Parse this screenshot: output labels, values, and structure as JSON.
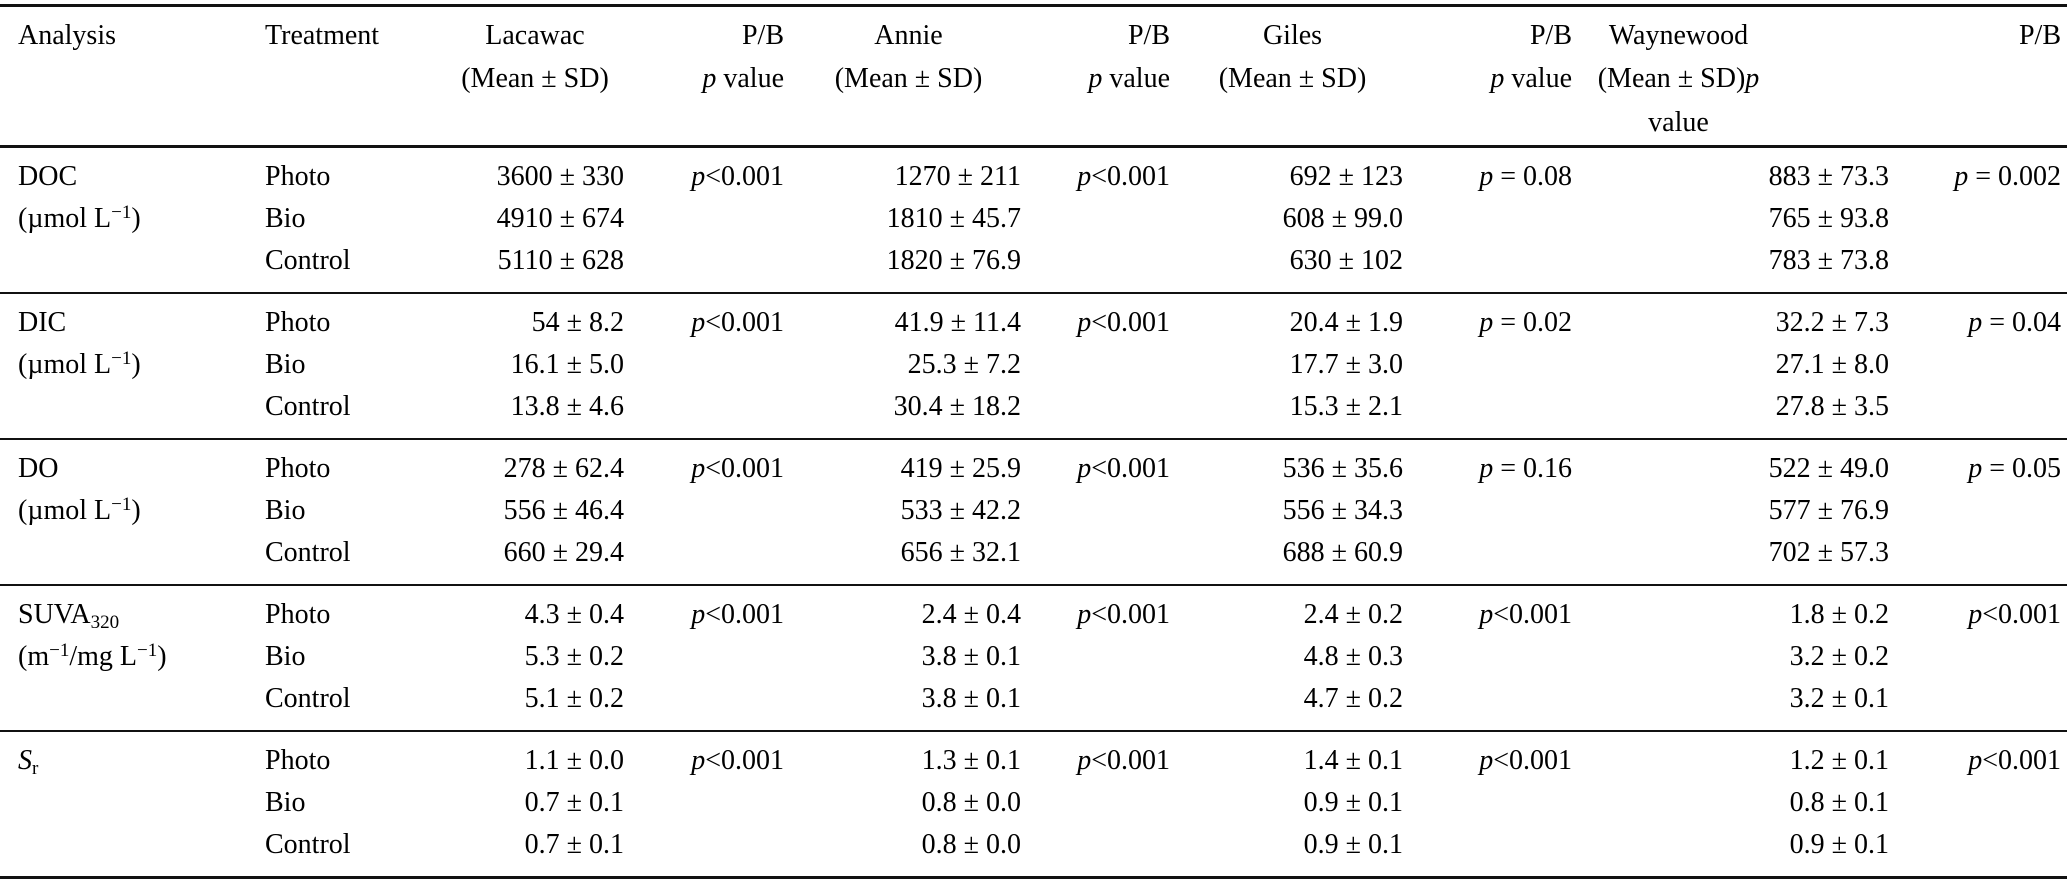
{
  "table": {
    "header": {
      "analysis": "Analysis",
      "treatment": "Treatment",
      "pb_label": "P/B",
      "p_value_label": "p value",
      "lakes": [
        {
          "name": "Lacawac",
          "mean_sd": "(Mean ± SD)",
          "mean_sd_extra": "",
          "pb": "P/B",
          "pb_sub": "p value"
        },
        {
          "name": "Annie",
          "mean_sd": "(Mean ± SD)",
          "mean_sd_extra": "",
          "pb": "P/B",
          "pb_sub": "p value"
        },
        {
          "name": "Giles",
          "mean_sd": "(Mean ± SD)",
          "mean_sd_extra": "",
          "pb": "P/B",
          "pb_sub": "p value"
        },
        {
          "name": "Waynewood",
          "mean_sd": "(Mean ± SD)",
          "mean_sd_extra": "p value",
          "pb": "P/B",
          "pb_sub": ""
        }
      ]
    },
    "sections": [
      {
        "id": "doc",
        "label": [
          {
            "t": "DOC"
          }
        ],
        "unit": [
          {
            "t": "(µmol L"
          },
          {
            "t": "−1",
            "s": "sup"
          },
          {
            "t": ")"
          }
        ],
        "rows": [
          {
            "treatment": "Photo",
            "values": [
              "3600 ± 330",
              "1270 ± 211",
              "692 ± 123",
              "883 ± 73.3"
            ],
            "p": [
              "p<0.001",
              "p<0.001",
              "p = 0.08",
              "p = 0.002"
            ]
          },
          {
            "treatment": "Bio",
            "values": [
              "4910 ± 674",
              "1810 ± 45.7",
              "608 ± 99.0",
              "765 ± 93.8"
            ],
            "p": [
              "",
              "",
              "",
              ""
            ]
          },
          {
            "treatment": "Control",
            "values": [
              "5110 ± 628",
              "1820 ± 76.9",
              "630 ± 102",
              "783 ± 73.8"
            ],
            "p": [
              "",
              "",
              "",
              ""
            ]
          }
        ]
      },
      {
        "id": "dic",
        "label": [
          {
            "t": "DIC"
          }
        ],
        "unit": [
          {
            "t": "(µmol L"
          },
          {
            "t": "−1",
            "s": "sup"
          },
          {
            "t": ")"
          }
        ],
        "rows": [
          {
            "treatment": "Photo",
            "values": [
              "54 ± 8.2",
              "41.9 ± 11.4",
              "20.4 ± 1.9",
              "32.2 ± 7.3"
            ],
            "p": [
              "p<0.001",
              "p<0.001",
              "p = 0.02",
              "p = 0.04"
            ]
          },
          {
            "treatment": "Bio",
            "values": [
              "16.1 ± 5.0",
              "25.3 ± 7.2",
              "17.7 ± 3.0",
              "27.1 ± 8.0"
            ],
            "p": [
              "",
              "",
              "",
              ""
            ]
          },
          {
            "treatment": "Control",
            "values": [
              "13.8 ± 4.6",
              "30.4 ± 18.2",
              "15.3 ± 2.1",
              "27.8 ± 3.5"
            ],
            "p": [
              "",
              "",
              "",
              ""
            ]
          }
        ]
      },
      {
        "id": "do",
        "label": [
          {
            "t": "DO"
          }
        ],
        "unit": [
          {
            "t": "(µmol L"
          },
          {
            "t": "−1",
            "s": "sup"
          },
          {
            "t": ")"
          }
        ],
        "rows": [
          {
            "treatment": "Photo",
            "values": [
              "278 ± 62.4",
              "419 ± 25.9",
              "536 ± 35.6",
              "522 ± 49.0"
            ],
            "p": [
              "p<0.001",
              "p<0.001",
              "p = 0.16",
              "p = 0.05"
            ]
          },
          {
            "treatment": "Bio",
            "values": [
              "556 ± 46.4",
              "533 ± 42.2",
              "556 ± 34.3",
              "577 ± 76.9"
            ],
            "p": [
              "",
              "",
              "",
              ""
            ]
          },
          {
            "treatment": "Control",
            "values": [
              "660 ± 29.4",
              "656 ± 32.1",
              "688 ± 60.9",
              "702 ± 57.3"
            ],
            "p": [
              "",
              "",
              "",
              ""
            ]
          }
        ]
      },
      {
        "id": "suva320",
        "label": [
          {
            "t": "SUVA"
          },
          {
            "t": "320",
            "s": "sub"
          }
        ],
        "unit": [
          {
            "t": "(m"
          },
          {
            "t": "−1",
            "s": "sup"
          },
          {
            "t": "/mg L"
          },
          {
            "t": "−1",
            "s": "sup"
          },
          {
            "t": ")"
          }
        ],
        "rows": [
          {
            "treatment": "Photo",
            "values": [
              "4.3 ± 0.4",
              "2.4 ± 0.4",
              "2.4 ± 0.2",
              "1.8 ± 0.2"
            ],
            "p": [
              "p<0.001",
              "p<0.001",
              "p<0.001",
              "p<0.001"
            ]
          },
          {
            "treatment": "Bio",
            "values": [
              "5.3 ± 0.2",
              "3.8 ± 0.1",
              "4.8 ± 0.3",
              "3.2 ± 0.2"
            ],
            "p": [
              "",
              "",
              "",
              ""
            ]
          },
          {
            "treatment": "Control",
            "values": [
              "5.1 ± 0.2",
              "3.8 ± 0.1",
              "4.7 ± 0.2",
              "3.2 ± 0.1"
            ],
            "p": [
              "",
              "",
              "",
              ""
            ]
          }
        ]
      },
      {
        "id": "sr",
        "label": [
          {
            "t": "S",
            "s": "i"
          },
          {
            "t": "r",
            "s": "sub"
          }
        ],
        "unit": [],
        "rows": [
          {
            "treatment": "Photo",
            "values": [
              "1.1 ± 0.0",
              "1.3 ± 0.1",
              "1.4 ± 0.1",
              "1.2 ± 0.1"
            ],
            "p": [
              "p<0.001",
              "p<0.001",
              "p<0.001",
              "p<0.001"
            ]
          },
          {
            "treatment": "Bio",
            "values": [
              "0.7 ± 0.1",
              "0.8 ± 0.0",
              "0.9 ± 0.1",
              "0.8 ± 0.1"
            ],
            "p": [
              "",
              "",
              "",
              ""
            ]
          },
          {
            "treatment": "Control",
            "values": [
              "0.7 ± 0.1",
              "0.8 ± 0.0",
              "0.9 ± 0.1",
              "0.9 ± 0.1"
            ],
            "p": [
              "",
              "",
              "",
              ""
            ]
          }
        ]
      }
    ]
  }
}
